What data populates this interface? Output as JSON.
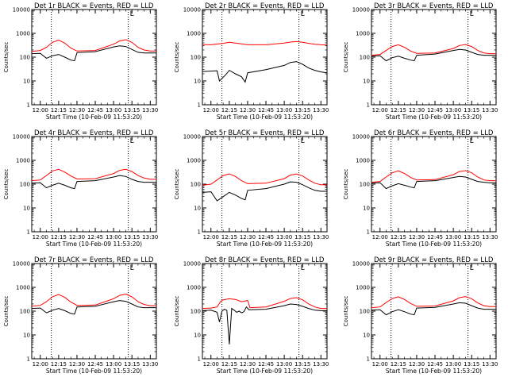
{
  "layout": {
    "rows": 3,
    "cols": 3
  },
  "colors": {
    "events": "#000000",
    "lld": "#ff0000",
    "frame": "#000000"
  },
  "common": {
    "type": "line",
    "ylabel": "Counts/sec",
    "xlabel": "Start Time (10-Feb-09 11:53:20)",
    "x_ticks": [
      "12:00",
      "12:15",
      "12:30",
      "12:45",
      "13:00",
      "13:15",
      "13:30"
    ],
    "x_range": [
      "11:53",
      "13:35"
    ],
    "y_scale": "log",
    "y_range": [
      1,
      10000
    ],
    "y_ticks": [
      "1",
      "10",
      "100",
      "1000",
      "10000"
    ],
    "marker_text": "L",
    "vertical_lines": [
      "12:09",
      "13:12"
    ],
    "grid": false
  },
  "chart_data": [
    {
      "title": "Det 1r BLACK = Events, RED = LLD",
      "type": "line",
      "series": [
        {
          "name": "BLACK = Events",
          "x": [
            "11:53",
            "12:00",
            "12:05",
            "12:10",
            "12:15",
            "12:20",
            "12:25",
            "12:28",
            "12:30",
            "12:45",
            "13:00",
            "13:05",
            "13:10",
            "13:15",
            "13:20",
            "13:25",
            "13:30",
            "13:35"
          ],
          "values": [
            140,
            145,
            90,
            115,
            130,
            100,
            75,
            70,
            155,
            170,
            270,
            300,
            280,
            210,
            160,
            150,
            150,
            150
          ]
        },
        {
          "name": "RED = LLD",
          "x": [
            "11:53",
            "12:00",
            "12:05",
            "12:10",
            "12:15",
            "12:20",
            "12:25",
            "12:30",
            "12:45",
            "13:00",
            "13:05",
            "13:10",
            "13:15",
            "13:20",
            "13:25",
            "13:30",
            "13:35"
          ],
          "values": [
            175,
            190,
            260,
            420,
            520,
            390,
            240,
            180,
            190,
            350,
            480,
            540,
            420,
            260,
            200,
            180,
            180
          ]
        }
      ]
    },
    {
      "title": "Det 2r BLACK = Events, RED = LLD",
      "type": "line",
      "series": [
        {
          "name": "BLACK = Events",
          "x": [
            "11:53",
            "12:05",
            "12:07",
            "12:12",
            "12:15",
            "12:20",
            "12:25",
            "12:28",
            "12:30",
            "12:45",
            "13:00",
            "13:05",
            "13:10",
            "13:15",
            "13:20",
            "13:25",
            "13:30",
            "13:35"
          ],
          "values": [
            25,
            27,
            10,
            18,
            28,
            20,
            15,
            9,
            22,
            30,
            45,
            60,
            65,
            50,
            35,
            28,
            24,
            22
          ]
        },
        {
          "name": "RED = LLD",
          "x": [
            "11:53",
            "12:00",
            "12:10",
            "12:15",
            "12:20",
            "12:30",
            "12:45",
            "13:00",
            "13:05",
            "13:10",
            "13:15",
            "13:20",
            "13:25",
            "13:30",
            "13:35"
          ],
          "values": [
            340,
            330,
            380,
            420,
            390,
            330,
            330,
            390,
            430,
            450,
            420,
            380,
            350,
            330,
            320
          ]
        }
      ]
    },
    {
      "title": "Det 3r BLACK = Events, RED = LLD",
      "type": "line",
      "series": [
        {
          "name": "BLACK = Events",
          "x": [
            "11:53",
            "12:00",
            "12:05",
            "12:10",
            "12:15",
            "12:20",
            "12:25",
            "12:28",
            "12:30",
            "12:45",
            "13:00",
            "13:05",
            "13:10",
            "13:15",
            "13:20",
            "13:25",
            "13:30",
            "13:35"
          ],
          "values": [
            110,
            115,
            70,
            95,
            110,
            90,
            75,
            70,
            120,
            135,
            190,
            210,
            200,
            160,
            130,
            120,
            120,
            120
          ]
        },
        {
          "name": "RED = LLD",
          "x": [
            "11:53",
            "12:00",
            "12:05",
            "12:10",
            "12:15",
            "12:20",
            "12:25",
            "12:30",
            "12:45",
            "13:00",
            "13:05",
            "13:10",
            "13:15",
            "13:20",
            "13:25",
            "13:30",
            "13:35"
          ],
          "values": [
            120,
            130,
            190,
            280,
            330,
            260,
            180,
            145,
            150,
            230,
            310,
            340,
            280,
            190,
            150,
            140,
            140
          ]
        }
      ]
    },
    {
      "title": "Det 4r BLACK = Events, RED = LLD",
      "type": "line",
      "series": [
        {
          "name": "BLACK = Events",
          "x": [
            "11:53",
            "12:00",
            "12:05",
            "12:10",
            "12:15",
            "12:20",
            "12:25",
            "12:28",
            "12:30",
            "12:45",
            "13:00",
            "13:05",
            "13:10",
            "13:15",
            "13:20",
            "13:25",
            "13:30",
            "13:35"
          ],
          "values": [
            110,
            115,
            70,
            90,
            110,
            90,
            70,
            65,
            130,
            140,
            200,
            230,
            210,
            160,
            130,
            120,
            120,
            120
          ]
        },
        {
          "name": "RED = LLD",
          "x": [
            "11:53",
            "12:00",
            "12:05",
            "12:10",
            "12:15",
            "12:20",
            "12:25",
            "12:30",
            "12:45",
            "13:00",
            "13:05",
            "13:10",
            "13:15",
            "13:20",
            "13:25",
            "13:30",
            "13:35"
          ],
          "values": [
            140,
            150,
            230,
            360,
            420,
            320,
            220,
            165,
            170,
            280,
            380,
            420,
            340,
            230,
            180,
            160,
            160
          ]
        }
      ]
    },
    {
      "title": "Det 5r BLACK = Events, RED = LLD",
      "type": "line",
      "series": [
        {
          "name": "BLACK = Events",
          "x": [
            "11:53",
            "12:00",
            "12:05",
            "12:10",
            "12:15",
            "12:20",
            "12:25",
            "12:28",
            "12:30",
            "12:45",
            "13:00",
            "13:05",
            "13:10",
            "13:15",
            "13:20",
            "13:25",
            "13:30",
            "13:35"
          ],
          "values": [
            45,
            48,
            20,
            30,
            45,
            35,
            25,
            22,
            55,
            65,
            100,
            125,
            120,
            95,
            70,
            55,
            50,
            50
          ]
        },
        {
          "name": "RED = LLD",
          "x": [
            "11:53",
            "12:00",
            "12:05",
            "12:10",
            "12:15",
            "12:20",
            "12:25",
            "12:30",
            "12:45",
            "13:00",
            "13:05",
            "13:10",
            "13:15",
            "13:20",
            "13:25",
            "13:30",
            "13:35"
          ],
          "values": [
            90,
            100,
            150,
            230,
            270,
            210,
            140,
            105,
            110,
            170,
            240,
            270,
            220,
            150,
            110,
            95,
            95
          ]
        }
      ]
    },
    {
      "title": "Det 6r BLACK = Events, RED = LLD",
      "type": "line",
      "series": [
        {
          "name": "BLACK = Events",
          "x": [
            "11:53",
            "12:00",
            "12:05",
            "12:10",
            "12:15",
            "12:20",
            "12:25",
            "12:28",
            "12:30",
            "12:45",
            "13:00",
            "13:05",
            "13:10",
            "13:15",
            "13:20",
            "13:25",
            "13:30",
            "13:35"
          ],
          "values": [
            110,
            115,
            65,
            85,
            105,
            90,
            75,
            70,
            130,
            140,
            190,
            210,
            200,
            160,
            130,
            120,
            115,
            115
          ]
        },
        {
          "name": "RED = LLD",
          "x": [
            "11:53",
            "12:00",
            "12:05",
            "12:10",
            "12:15",
            "12:20",
            "12:25",
            "12:30",
            "12:45",
            "13:00",
            "13:05",
            "13:10",
            "13:15",
            "13:20",
            "13:25",
            "13:30",
            "13:35"
          ],
          "values": [
            120,
            130,
            200,
            300,
            360,
            280,
            190,
            150,
            155,
            250,
            340,
            370,
            300,
            200,
            150,
            140,
            140
          ]
        }
      ]
    },
    {
      "title": "Det 7r BLACK = Events, RED = LLD",
      "type": "line",
      "series": [
        {
          "name": "BLACK = Events",
          "x": [
            "11:53",
            "12:00",
            "12:05",
            "12:10",
            "12:15",
            "12:20",
            "12:25",
            "12:28",
            "12:30",
            "12:45",
            "13:00",
            "13:05",
            "13:10",
            "13:15",
            "13:20",
            "13:25",
            "13:30",
            "13:35"
          ],
          "values": [
            130,
            135,
            85,
            110,
            130,
            105,
            80,
            75,
            150,
            160,
            250,
            280,
            260,
            200,
            150,
            140,
            140,
            140
          ]
        },
        {
          "name": "RED = LLD",
          "x": [
            "11:53",
            "12:00",
            "12:05",
            "12:10",
            "12:15",
            "12:20",
            "12:25",
            "12:30",
            "12:45",
            "13:00",
            "13:05",
            "13:10",
            "13:15",
            "13:20",
            "13:25",
            "13:30",
            "13:35"
          ],
          "values": [
            160,
            175,
            250,
            400,
            500,
            380,
            240,
            175,
            180,
            330,
            460,
            520,
            400,
            250,
            190,
            170,
            170
          ]
        }
      ]
    },
    {
      "title": "Det 8r BLACK = Events, RED = LLD",
      "type": "line",
      "series": [
        {
          "name": "BLACK = Events",
          "x": [
            "11:53",
            "12:00",
            "12:05",
            "12:07",
            "12:09",
            "12:11",
            "12:13",
            "12:15",
            "12:17",
            "12:19",
            "12:21",
            "12:23",
            "12:25",
            "12:27",
            "12:29",
            "12:31",
            "12:45",
            "13:00",
            "13:05",
            "13:10",
            "13:15",
            "13:20",
            "13:25",
            "13:30",
            "13:35"
          ],
          "values": [
            105,
            110,
            90,
            35,
            100,
            120,
            110,
            4,
            130,
            110,
            90,
            100,
            85,
            95,
            150,
            115,
            120,
            170,
            200,
            190,
            160,
            130,
            110,
            105,
            105
          ]
        },
        {
          "name": "RED = LLD",
          "x": [
            "11:53",
            "12:00",
            "12:05",
            "12:08",
            "12:10",
            "12:15",
            "12:20",
            "12:25",
            "12:30",
            "12:32",
            "12:45",
            "13:00",
            "13:05",
            "13:10",
            "13:15",
            "13:20",
            "13:25",
            "13:30",
            "13:35"
          ],
          "values": [
            130,
            135,
            150,
            260,
            300,
            330,
            310,
            250,
            280,
            140,
            150,
            260,
            340,
            370,
            300,
            200,
            150,
            130,
            130
          ]
        }
      ]
    },
    {
      "title": "Det 9r BLACK = Events, RED = LLD",
      "type": "line",
      "series": [
        {
          "name": "BLACK = Events",
          "x": [
            "11:53",
            "12:00",
            "12:05",
            "12:10",
            "12:15",
            "12:20",
            "12:25",
            "12:28",
            "12:30",
            "12:45",
            "13:00",
            "13:05",
            "13:10",
            "13:15",
            "13:20",
            "13:25",
            "13:30",
            "13:35"
          ],
          "values": [
            110,
            115,
            70,
            95,
            115,
            95,
            75,
            70,
            135,
            145,
            200,
            225,
            215,
            170,
            135,
            120,
            120,
            120
          ]
        },
        {
          "name": "RED = LLD",
          "x": [
            "11:53",
            "12:00",
            "12:05",
            "12:10",
            "12:15",
            "12:20",
            "12:25",
            "12:30",
            "12:45",
            "13:00",
            "13:05",
            "13:10",
            "13:15",
            "13:20",
            "13:25",
            "13:30",
            "13:35"
          ],
          "values": [
            140,
            150,
            230,
            340,
            400,
            310,
            210,
            160,
            165,
            270,
            370,
            410,
            330,
            220,
            170,
            155,
            155
          ]
        }
      ]
    }
  ]
}
